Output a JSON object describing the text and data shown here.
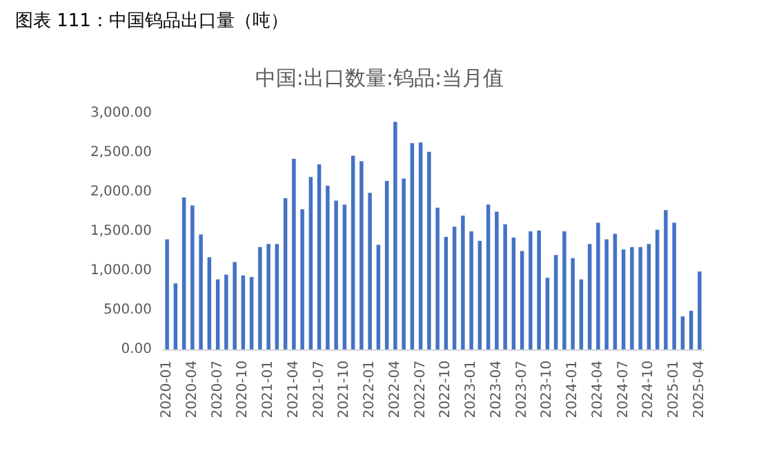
{
  "chart_data": {
    "type": "bar",
    "title": "图表 111：中国钨品出口量（吨）",
    "subtitle": "中国:出口数量:钨品:当月值",
    "categories": [
      "2020-01",
      null,
      null,
      "2020-04",
      null,
      null,
      "2020-07",
      null,
      null,
      "2020-10",
      null,
      null,
      "2021-01",
      null,
      null,
      "2021-04",
      null,
      null,
      "2021-07",
      null,
      null,
      "2021-10",
      null,
      null,
      "2022-01",
      null,
      null,
      "2022-04",
      null,
      null,
      "2022-07",
      null,
      null,
      "2022-10",
      null,
      null,
      "2023-01",
      null,
      null,
      "2023-04",
      null,
      null,
      "2023-07",
      null,
      null,
      "2023-10",
      null,
      null,
      "2024-01",
      null,
      null,
      "2024-04",
      null,
      null,
      "2024-07",
      null,
      null,
      "2024-10",
      null,
      null,
      "2025-01",
      null,
      null,
      "2025-04"
    ],
    "values": [
      1400,
      840,
      1930,
      1830,
      1460,
      1170,
      890,
      950,
      1110,
      940,
      920,
      1300,
      1340,
      1340,
      1920,
      2420,
      1780,
      2190,
      2350,
      2080,
      1890,
      1840,
      2460,
      2390,
      1990,
      1330,
      2140,
      2890,
      2170,
      2620,
      2630,
      2510,
      1800,
      1430,
      1560,
      1700,
      1500,
      1380,
      1840,
      1750,
      1590,
      1420,
      1250,
      1500,
      1510,
      910,
      1200,
      1500,
      1160,
      890,
      1340,
      1610,
      1400,
      1470,
      1270,
      1300,
      1300,
      1340,
      1520,
      1770,
      1610,
      420,
      490,
      990
    ],
    "color": "#4472c4",
    "ylim": [
      0,
      3000
    ],
    "yticks": [
      {
        "value": 0,
        "label": "0.00"
      },
      {
        "value": 500,
        "label": "500.00"
      },
      {
        "value": 1000,
        "label": "1,000.00"
      },
      {
        "value": 1500,
        "label": "1,500.00"
      },
      {
        "value": 2000,
        "label": "2,000.00"
      },
      {
        "value": 2500,
        "label": "2,500.00"
      },
      {
        "value": 3000,
        "label": "3,000.00"
      }
    ],
    "grid": false
  }
}
